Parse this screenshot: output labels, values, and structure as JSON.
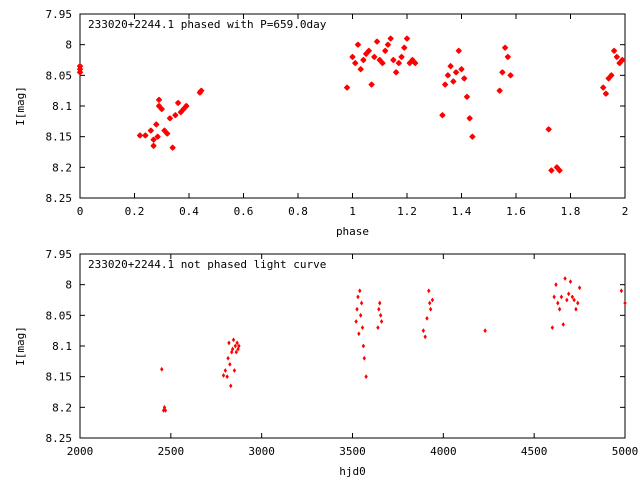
{
  "chart_data": [
    {
      "type": "scatter",
      "title": "233020+2244.1 phased with P=659.0day",
      "xlabel": "phase",
      "ylabel": "I[mag]",
      "xlim": [
        0,
        2
      ],
      "ylim": [
        7.95,
        8.25
      ],
      "y_inverted": true,
      "xticks": [
        "0",
        "0.2",
        "0.4",
        "0.6",
        "0.8",
        "1",
        "1.2",
        "1.4",
        "1.6",
        "1.8",
        "2"
      ],
      "yticks": [
        "7.95",
        "8",
        "8.05",
        "8.1",
        "8.15",
        "8.2",
        "8.25"
      ],
      "grid": false,
      "marker": "filled star",
      "color": "#ff0000",
      "points": [
        [
          0.0,
          8.04
        ],
        [
          0.0,
          8.035
        ],
        [
          0.0,
          8.045
        ],
        [
          0.22,
          8.148
        ],
        [
          0.24,
          8.148
        ],
        [
          0.26,
          8.14
        ],
        [
          0.27,
          8.155
        ],
        [
          0.27,
          8.165
        ],
        [
          0.28,
          8.13
        ],
        [
          0.285,
          8.15
        ],
        [
          0.29,
          8.09
        ],
        [
          0.29,
          8.1
        ],
        [
          0.3,
          8.105
        ],
        [
          0.31,
          8.14
        ],
        [
          0.32,
          8.145
        ],
        [
          0.33,
          8.12
        ],
        [
          0.34,
          8.168
        ],
        [
          0.35,
          8.115
        ],
        [
          0.36,
          8.095
        ],
        [
          0.37,
          8.11
        ],
        [
          0.38,
          8.105
        ],
        [
          0.39,
          8.1
        ],
        [
          0.44,
          8.078
        ],
        [
          0.445,
          8.075
        ],
        [
          0.98,
          8.07
        ],
        [
          1.0,
          8.02
        ],
        [
          1.01,
          8.03
        ],
        [
          1.02,
          8.0
        ],
        [
          1.03,
          8.04
        ],
        [
          1.04,
          8.025
        ],
        [
          1.05,
          8.015
        ],
        [
          1.06,
          8.01
        ],
        [
          1.07,
          8.065
        ],
        [
          1.08,
          8.02
        ],
        [
          1.09,
          7.995
        ],
        [
          1.1,
          8.025
        ],
        [
          1.11,
          8.03
        ],
        [
          1.12,
          8.01
        ],
        [
          1.13,
          8.0
        ],
        [
          1.14,
          7.99
        ],
        [
          1.15,
          8.025
        ],
        [
          1.16,
          8.045
        ],
        [
          1.17,
          8.03
        ],
        [
          1.18,
          8.02
        ],
        [
          1.19,
          8.005
        ],
        [
          1.2,
          7.99
        ],
        [
          1.21,
          8.03
        ],
        [
          1.22,
          8.025
        ],
        [
          1.23,
          8.03
        ],
        [
          1.33,
          8.115
        ],
        [
          1.34,
          8.065
        ],
        [
          1.35,
          8.05
        ],
        [
          1.36,
          8.035
        ],
        [
          1.37,
          8.06
        ],
        [
          1.38,
          8.045
        ],
        [
          1.39,
          8.01
        ],
        [
          1.4,
          8.04
        ],
        [
          1.41,
          8.055
        ],
        [
          1.42,
          8.085
        ],
        [
          1.43,
          8.12
        ],
        [
          1.44,
          8.15
        ],
        [
          1.54,
          8.075
        ],
        [
          1.55,
          8.045
        ],
        [
          1.56,
          8.005
        ],
        [
          1.57,
          8.02
        ],
        [
          1.58,
          8.05
        ],
        [
          1.72,
          8.138
        ],
        [
          1.73,
          8.205
        ],
        [
          1.75,
          8.2
        ],
        [
          1.76,
          8.205
        ],
        [
          1.92,
          8.07
        ],
        [
          1.93,
          8.08
        ],
        [
          1.94,
          8.055
        ],
        [
          1.95,
          8.05
        ],
        [
          1.96,
          8.01
        ],
        [
          1.97,
          8.02
        ],
        [
          1.98,
          8.03
        ],
        [
          1.99,
          8.025
        ]
      ]
    },
    {
      "type": "scatter",
      "title": "233020+2244.1 not phased light curve",
      "xlabel": "hjd0",
      "ylabel": "I[mag]",
      "xlim": [
        2000,
        5000
      ],
      "ylim": [
        7.95,
        8.25
      ],
      "y_inverted": true,
      "xticks": [
        "2000",
        "2500",
        "3000",
        "3500",
        "4000",
        "4500",
        "5000"
      ],
      "yticks": [
        "7.95",
        "8",
        "8.05",
        "8.1",
        "8.15",
        "8.2",
        "8.25"
      ],
      "grid": false,
      "marker": "filled diamond",
      "color": "#ff0000",
      "points": [
        [
          2450,
          8.138
        ],
        [
          2460,
          8.205
        ],
        [
          2465,
          8.2
        ],
        [
          2470,
          8.205
        ],
        [
          2790,
          8.148
        ],
        [
          2800,
          8.14
        ],
        [
          2810,
          8.15
        ],
        [
          2815,
          8.12
        ],
        [
          2820,
          8.095
        ],
        [
          2825,
          8.13
        ],
        [
          2830,
          8.165
        ],
        [
          2835,
          8.11
        ],
        [
          2840,
          8.105
        ],
        [
          2845,
          8.09
        ],
        [
          2850,
          8.14
        ],
        [
          2855,
          8.1
        ],
        [
          2860,
          8.11
        ],
        [
          2865,
          8.095
        ],
        [
          2870,
          8.105
        ],
        [
          2875,
          8.1
        ],
        [
          3520,
          8.06
        ],
        [
          3525,
          8.04
        ],
        [
          3530,
          8.02
        ],
        [
          3535,
          8.08
        ],
        [
          3540,
          8.01
        ],
        [
          3545,
          8.05
        ],
        [
          3550,
          8.03
        ],
        [
          3555,
          8.07
        ],
        [
          3560,
          8.1
        ],
        [
          3565,
          8.12
        ],
        [
          3575,
          8.15
        ],
        [
          3640,
          8.07
        ],
        [
          3645,
          8.04
        ],
        [
          3650,
          8.03
        ],
        [
          3655,
          8.05
        ],
        [
          3660,
          8.06
        ],
        [
          3890,
          8.075
        ],
        [
          3900,
          8.085
        ],
        [
          3910,
          8.055
        ],
        [
          3920,
          8.01
        ],
        [
          3925,
          8.03
        ],
        [
          3930,
          8.04
        ],
        [
          3940,
          8.025
        ],
        [
          4230,
          8.075
        ],
        [
          4600,
          8.07
        ],
        [
          4610,
          8.02
        ],
        [
          4620,
          8.0
        ],
        [
          4630,
          8.03
        ],
        [
          4640,
          8.04
        ],
        [
          4650,
          8.02
        ],
        [
          4660,
          8.065
        ],
        [
          4670,
          7.99
        ],
        [
          4680,
          8.025
        ],
        [
          4690,
          8.015
        ],
        [
          4700,
          7.995
        ],
        [
          4710,
          8.02
        ],
        [
          4720,
          8.025
        ],
        [
          4730,
          8.04
        ],
        [
          4740,
          8.03
        ],
        [
          4750,
          8.005
        ],
        [
          4980,
          8.01
        ],
        [
          5000,
          8.03
        ]
      ]
    }
  ]
}
